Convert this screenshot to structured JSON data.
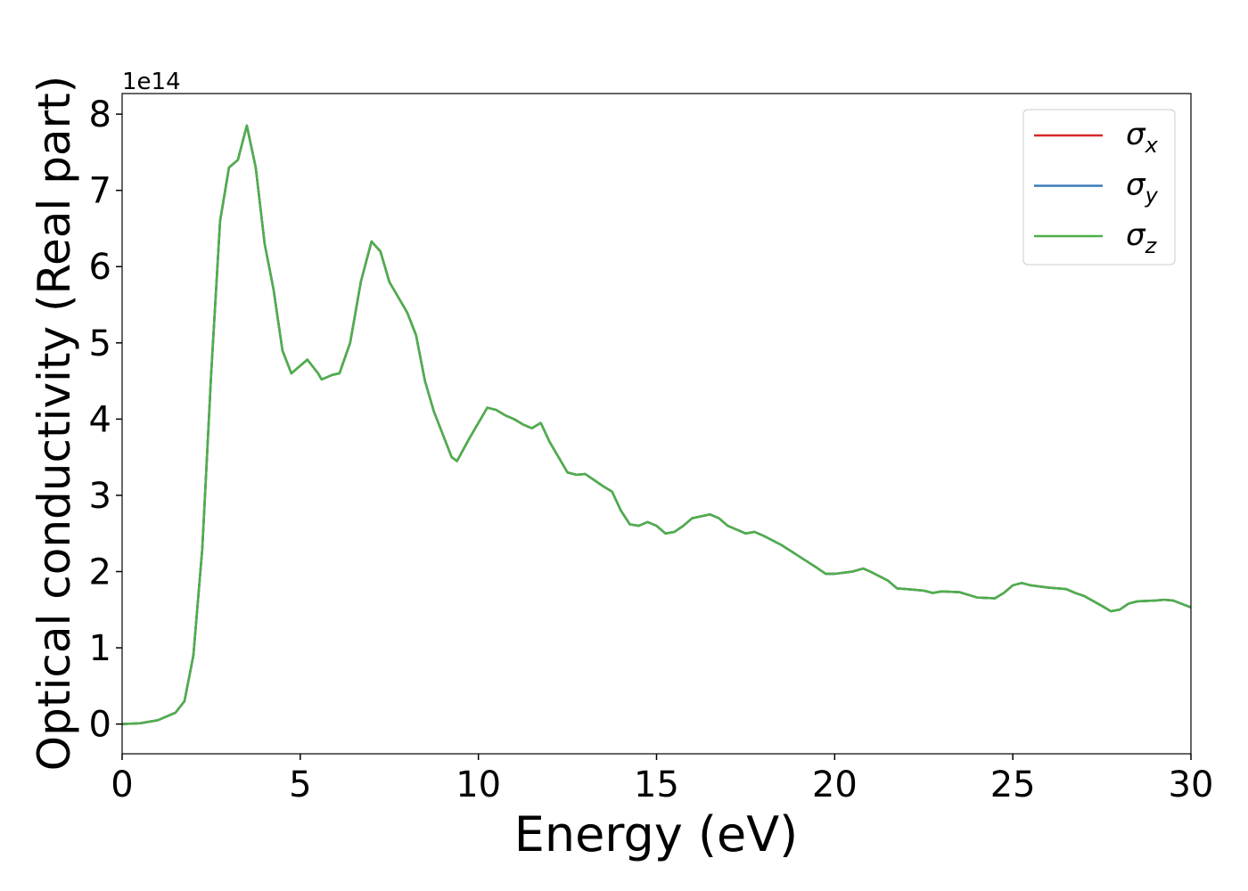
{
  "chart_data": {
    "type": "line",
    "xlabel": "Energy (eV)",
    "ylabel": "Optical conductivity (Real part)",
    "y_offset_label": "1e14",
    "x": [
      0,
      0.5,
      1,
      1.5,
      1.75,
      2,
      2.25,
      2.5,
      2.75,
      3,
      3.25,
      3.5,
      3.75,
      4,
      4.25,
      4.5,
      4.75,
      5,
      5.2,
      5.5,
      5.6,
      5.9,
      6.1,
      6.4,
      6.7,
      7,
      7.25,
      7.5,
      7.75,
      8,
      8.25,
      8.5,
      8.75,
      9,
      9.25,
      9.4,
      9.75,
      10,
      10.25,
      10.5,
      10.75,
      11,
      11.25,
      11.5,
      11.75,
      12,
      12.25,
      12.5,
      12.75,
      13,
      13.25,
      13.5,
      13.75,
      14,
      14.25,
      14.5,
      14.75,
      15,
      15.25,
      15.5,
      15.75,
      16,
      16.5,
      16.75,
      17,
      17.5,
      17.75,
      18,
      18.5,
      19,
      19.5,
      19.75,
      20,
      20.5,
      20.8,
      21,
      21.5,
      21.75,
      22,
      22.5,
      22.75,
      23,
      23.5,
      24,
      24.5,
      24.75,
      25,
      25.25,
      25.5,
      26,
      26.5,
      26.75,
      27,
      27.5,
      27.75,
      28,
      28.25,
      28.5,
      29,
      29.25,
      29.5,
      30
    ],
    "series": [
      {
        "name": "σx",
        "color": "#d62728",
        "values": [
          0,
          0.01,
          0.05,
          0.15,
          0.3,
          0.9,
          2.3,
          4.6,
          6.6,
          7.3,
          7.4,
          7.85,
          7.3,
          6.3,
          5.7,
          4.9,
          4.6,
          4.7,
          4.78,
          4.6,
          4.52,
          4.58,
          4.6,
          5.0,
          5.8,
          6.33,
          6.2,
          5.8,
          5.6,
          5.4,
          5.1,
          4.5,
          4.1,
          3.8,
          3.5,
          3.45,
          3.75,
          3.95,
          4.15,
          4.12,
          4.05,
          4.0,
          3.93,
          3.88,
          3.95,
          3.7,
          3.5,
          3.3,
          3.27,
          3.28,
          3.2,
          3.12,
          3.05,
          2.8,
          2.62,
          2.6,
          2.65,
          2.6,
          2.5,
          2.52,
          2.6,
          2.7,
          2.75,
          2.7,
          2.6,
          2.5,
          2.52,
          2.47,
          2.35,
          2.2,
          2.05,
          1.97,
          1.97,
          2.0,
          2.04,
          2.0,
          1.88,
          1.78,
          1.77,
          1.75,
          1.72,
          1.74,
          1.73,
          1.66,
          1.65,
          1.72,
          1.82,
          1.85,
          1.82,
          1.79,
          1.77,
          1.72,
          1.68,
          1.55,
          1.48,
          1.5,
          1.58,
          1.61,
          1.62,
          1.63,
          1.62,
          1.53
        ]
      },
      {
        "name": "σy",
        "color": "#3a7ab8",
        "values": [
          0,
          0.01,
          0.05,
          0.15,
          0.3,
          0.9,
          2.3,
          4.6,
          6.6,
          7.3,
          7.4,
          7.85,
          7.3,
          6.3,
          5.7,
          4.9,
          4.6,
          4.7,
          4.78,
          4.6,
          4.52,
          4.58,
          4.6,
          5.0,
          5.8,
          6.33,
          6.2,
          5.8,
          5.6,
          5.4,
          5.1,
          4.5,
          4.1,
          3.8,
          3.5,
          3.45,
          3.75,
          3.95,
          4.15,
          4.12,
          4.05,
          4.0,
          3.93,
          3.88,
          3.95,
          3.7,
          3.5,
          3.3,
          3.27,
          3.28,
          3.2,
          3.12,
          3.05,
          2.8,
          2.62,
          2.6,
          2.65,
          2.6,
          2.5,
          2.52,
          2.6,
          2.7,
          2.75,
          2.7,
          2.6,
          2.5,
          2.52,
          2.47,
          2.35,
          2.2,
          2.05,
          1.97,
          1.97,
          2.0,
          2.04,
          2.0,
          1.88,
          1.78,
          1.77,
          1.75,
          1.72,
          1.74,
          1.73,
          1.66,
          1.65,
          1.72,
          1.82,
          1.85,
          1.82,
          1.79,
          1.77,
          1.72,
          1.68,
          1.55,
          1.48,
          1.5,
          1.58,
          1.61,
          1.62,
          1.63,
          1.62,
          1.53
        ]
      },
      {
        "name": "σz",
        "color": "#4daf4a",
        "values": [
          0,
          0.01,
          0.05,
          0.15,
          0.3,
          0.9,
          2.3,
          4.6,
          6.6,
          7.3,
          7.4,
          7.85,
          7.3,
          6.3,
          5.7,
          4.9,
          4.6,
          4.7,
          4.78,
          4.6,
          4.52,
          4.58,
          4.6,
          5.0,
          5.8,
          6.33,
          6.2,
          5.8,
          5.6,
          5.4,
          5.1,
          4.5,
          4.1,
          3.8,
          3.5,
          3.45,
          3.75,
          3.95,
          4.15,
          4.12,
          4.05,
          4.0,
          3.93,
          3.88,
          3.95,
          3.7,
          3.5,
          3.3,
          3.27,
          3.28,
          3.2,
          3.12,
          3.05,
          2.8,
          2.62,
          2.6,
          2.65,
          2.6,
          2.5,
          2.52,
          2.6,
          2.7,
          2.75,
          2.7,
          2.6,
          2.5,
          2.52,
          2.47,
          2.35,
          2.2,
          2.05,
          1.97,
          1.97,
          2.0,
          2.04,
          2.0,
          1.88,
          1.78,
          1.77,
          1.75,
          1.72,
          1.74,
          1.73,
          1.66,
          1.65,
          1.72,
          1.82,
          1.85,
          1.82,
          1.79,
          1.77,
          1.72,
          1.68,
          1.55,
          1.48,
          1.5,
          1.58,
          1.61,
          1.62,
          1.63,
          1.62,
          1.53
        ]
      }
    ],
    "xlim": [
      0,
      30
    ],
    "xticks": [
      0,
      5,
      10,
      15,
      20,
      25,
      30
    ],
    "ylim": [
      -0.39,
      8.27
    ],
    "yticks": [
      0,
      1,
      2,
      3,
      4,
      5,
      6,
      7,
      8
    ],
    "grid": false,
    "legend": "upper right"
  }
}
